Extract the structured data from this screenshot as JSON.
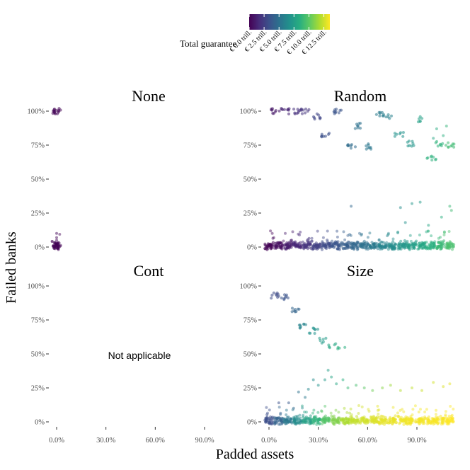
{
  "chart_data": {
    "type": "scatter",
    "xlabel": "Padded assets",
    "ylabel": "Failed banks",
    "x_ticks": [
      "0.0%",
      "30.0%",
      "60.0%",
      "90.0%"
    ],
    "y_ticks": [
      "0%",
      "25%",
      "50%",
      "75%",
      "100%"
    ],
    "x_range": [
      -0.05,
      1.12
    ],
    "y_range": [
      -0.04,
      1.05
    ],
    "legend": {
      "title": "Total guarantee",
      "position": "top",
      "colormap": "viridis",
      "range": [
        0,
        13.5
      ],
      "ticks": [
        "€ 0.0 trill.",
        "€ 2.5 trill.",
        "€ 5.0 trill.",
        "€ 7.5 trill.",
        "€ 10.0 trill.",
        "€ 12.5 trill."
      ],
      "tick_values": [
        0,
        2.5,
        5.0,
        7.5,
        10.0,
        12.5
      ]
    },
    "facets": [
      {
        "name": "None",
        "show_x_ticks": false,
        "baseline_guarantee": [
          0.1
        ],
        "clusters": [
          {
            "x": 0.0,
            "y": 1.0,
            "g": 0.1,
            "n": 16
          },
          {
            "x": 0.0,
            "y": 0.02,
            "g": 0.1,
            "n": 4
          }
        ],
        "scattered": [
          {
            "x": 0.0,
            "y": 0.05,
            "g": 0.2
          },
          {
            "x": 0.0,
            "y": 0.1,
            "g": 0.3
          },
          {
            "x": 0.0,
            "y": 0.07,
            "g": 0.3
          }
        ]
      },
      {
        "name": "Random",
        "show_x_ticks": false,
        "baseline_guarantee": [
          0.1,
          0.5,
          1.0,
          1.5,
          2.0,
          2.5,
          3.0,
          3.5,
          4.0,
          4.5,
          5.0,
          5.5,
          6.0,
          6.5,
          7.0,
          7.5,
          8.0,
          8.5,
          9.0,
          9.5
        ],
        "clusters": [
          {
            "x": 0.04,
            "y": 1.0,
            "g": 0.8,
            "n": 9
          },
          {
            "x": 0.1,
            "y": 1.0,
            "g": 1.3,
            "n": 9
          },
          {
            "x": 0.17,
            "y": 1.0,
            "g": 1.8,
            "n": 9
          },
          {
            "x": 0.22,
            "y": 1.0,
            "g": 2.0,
            "n": 8
          },
          {
            "x": 0.29,
            "y": 0.96,
            "g": 2.8,
            "n": 8
          },
          {
            "x": 0.34,
            "y": 0.83,
            "g": 3.3,
            "n": 8
          },
          {
            "x": 0.42,
            "y": 1.0,
            "g": 3.5,
            "n": 10
          },
          {
            "x": 0.5,
            "y": 0.74,
            "g": 4.7,
            "n": 8
          },
          {
            "x": 0.55,
            "y": 0.89,
            "g": 5.0,
            "n": 8
          },
          {
            "x": 0.61,
            "y": 0.74,
            "g": 5.3,
            "n": 8
          },
          {
            "x": 0.68,
            "y": 0.98,
            "g": 5.5,
            "n": 8
          },
          {
            "x": 0.72,
            "y": 0.96,
            "g": 5.8,
            "n": 6
          },
          {
            "x": 0.79,
            "y": 0.83,
            "g": 6.8,
            "n": 7
          },
          {
            "x": 0.86,
            "y": 0.76,
            "g": 7.0,
            "n": 8
          },
          {
            "x": 0.93,
            "y": 0.94,
            "g": 7.6,
            "n": 6
          },
          {
            "x": 0.99,
            "y": 0.66,
            "g": 8.6,
            "n": 8
          },
          {
            "x": 1.04,
            "y": 0.76,
            "g": 8.7,
            "n": 7
          },
          {
            "x": 1.1,
            "y": 0.75,
            "g": 9.2,
            "n": 9
          }
        ],
        "scattered": [
          {
            "x": 0.5,
            "y": 0.3,
            "g": 4.5
          },
          {
            "x": 0.8,
            "y": 0.29,
            "g": 6.5
          },
          {
            "x": 0.87,
            "y": 0.32,
            "g": 7.0
          },
          {
            "x": 0.92,
            "y": 0.33,
            "g": 7.2
          },
          {
            "x": 1.05,
            "y": 0.22,
            "g": 8.5
          },
          {
            "x": 1.1,
            "y": 0.3,
            "g": 9.0
          },
          {
            "x": 1.11,
            "y": 0.27,
            "g": 9.2
          },
          {
            "x": 0.83,
            "y": 0.18,
            "g": 6.7
          },
          {
            "x": 0.97,
            "y": 0.16,
            "g": 8.0
          },
          {
            "x": 1.0,
            "y": 0.8,
            "g": 8.0
          },
          {
            "x": 1.02,
            "y": 0.87,
            "g": 8.3
          },
          {
            "x": 1.06,
            "y": 0.82,
            "g": 8.5
          },
          {
            "x": 1.08,
            "y": 0.89,
            "g": 8.8
          }
        ]
      },
      {
        "name": "Cont",
        "show_x_ticks": true,
        "note": "Not applicable",
        "baseline_guarantee": [],
        "clusters": [],
        "scattered": []
      },
      {
        "name": "Size",
        "show_x_ticks": true,
        "baseline_guarantee": [
          3.2,
          4.3,
          5.4,
          6.5,
          7.6,
          8.7,
          9.8,
          10.9,
          11.8,
          12.3,
          12.6,
          12.8,
          13.0,
          13.1,
          13.2,
          13.3,
          13.3,
          13.4,
          13.4,
          13.5
        ],
        "clusters": [
          {
            "x": 0.04,
            "y": 0.93,
            "g": 3.0,
            "n": 9
          },
          {
            "x": 0.1,
            "y": 0.92,
            "g": 3.5,
            "n": 8
          },
          {
            "x": 0.16,
            "y": 0.83,
            "g": 4.3,
            "n": 8
          },
          {
            "x": 0.21,
            "y": 0.71,
            "g": 6.0,
            "n": 8
          },
          {
            "x": 0.27,
            "y": 0.67,
            "g": 6.8,
            "n": 8
          },
          {
            "x": 0.33,
            "y": 0.6,
            "g": 7.3,
            "n": 6
          },
          {
            "x": 0.38,
            "y": 0.56,
            "g": 8.0,
            "n": 5
          },
          {
            "x": 0.44,
            "y": 0.53,
            "g": 8.5,
            "n": 4
          }
        ],
        "scattered": [
          {
            "x": 0.06,
            "y": 0.14,
            "g": 3.3
          },
          {
            "x": 0.12,
            "y": 0.14,
            "g": 3.8
          },
          {
            "x": 0.22,
            "y": 0.18,
            "g": 5.5
          },
          {
            "x": 0.27,
            "y": 0.31,
            "g": 6.5
          },
          {
            "x": 0.3,
            "y": 0.27,
            "g": 6.8
          },
          {
            "x": 0.34,
            "y": 0.31,
            "g": 7.2
          },
          {
            "x": 0.36,
            "y": 0.38,
            "g": 7.5
          },
          {
            "x": 0.38,
            "y": 0.33,
            "g": 7.8
          },
          {
            "x": 0.41,
            "y": 0.28,
            "g": 8.0
          },
          {
            "x": 0.45,
            "y": 0.31,
            "g": 8.5
          },
          {
            "x": 0.48,
            "y": 0.25,
            "g": 9.0
          },
          {
            "x": 0.53,
            "y": 0.27,
            "g": 9.4
          },
          {
            "x": 0.58,
            "y": 0.25,
            "g": 10.0
          },
          {
            "x": 0.63,
            "y": 0.23,
            "g": 10.5
          },
          {
            "x": 0.69,
            "y": 0.25,
            "g": 11.0
          },
          {
            "x": 0.74,
            "y": 0.27,
            "g": 11.5
          },
          {
            "x": 0.8,
            "y": 0.23,
            "g": 12.0
          },
          {
            "x": 0.87,
            "y": 0.25,
            "g": 12.2
          },
          {
            "x": 0.93,
            "y": 0.23,
            "g": 12.4
          },
          {
            "x": 1.0,
            "y": 0.29,
            "g": 12.6
          },
          {
            "x": 1.06,
            "y": 0.26,
            "g": 12.8
          },
          {
            "x": 1.1,
            "y": 0.28,
            "g": 13.0
          },
          {
            "x": 0.18,
            "y": 0.22,
            "g": 5.0
          },
          {
            "x": 0.24,
            "y": 0.24,
            "g": 6.2
          },
          {
            "x": 0.15,
            "y": 0.1,
            "g": 4.6
          }
        ]
      }
    ]
  }
}
